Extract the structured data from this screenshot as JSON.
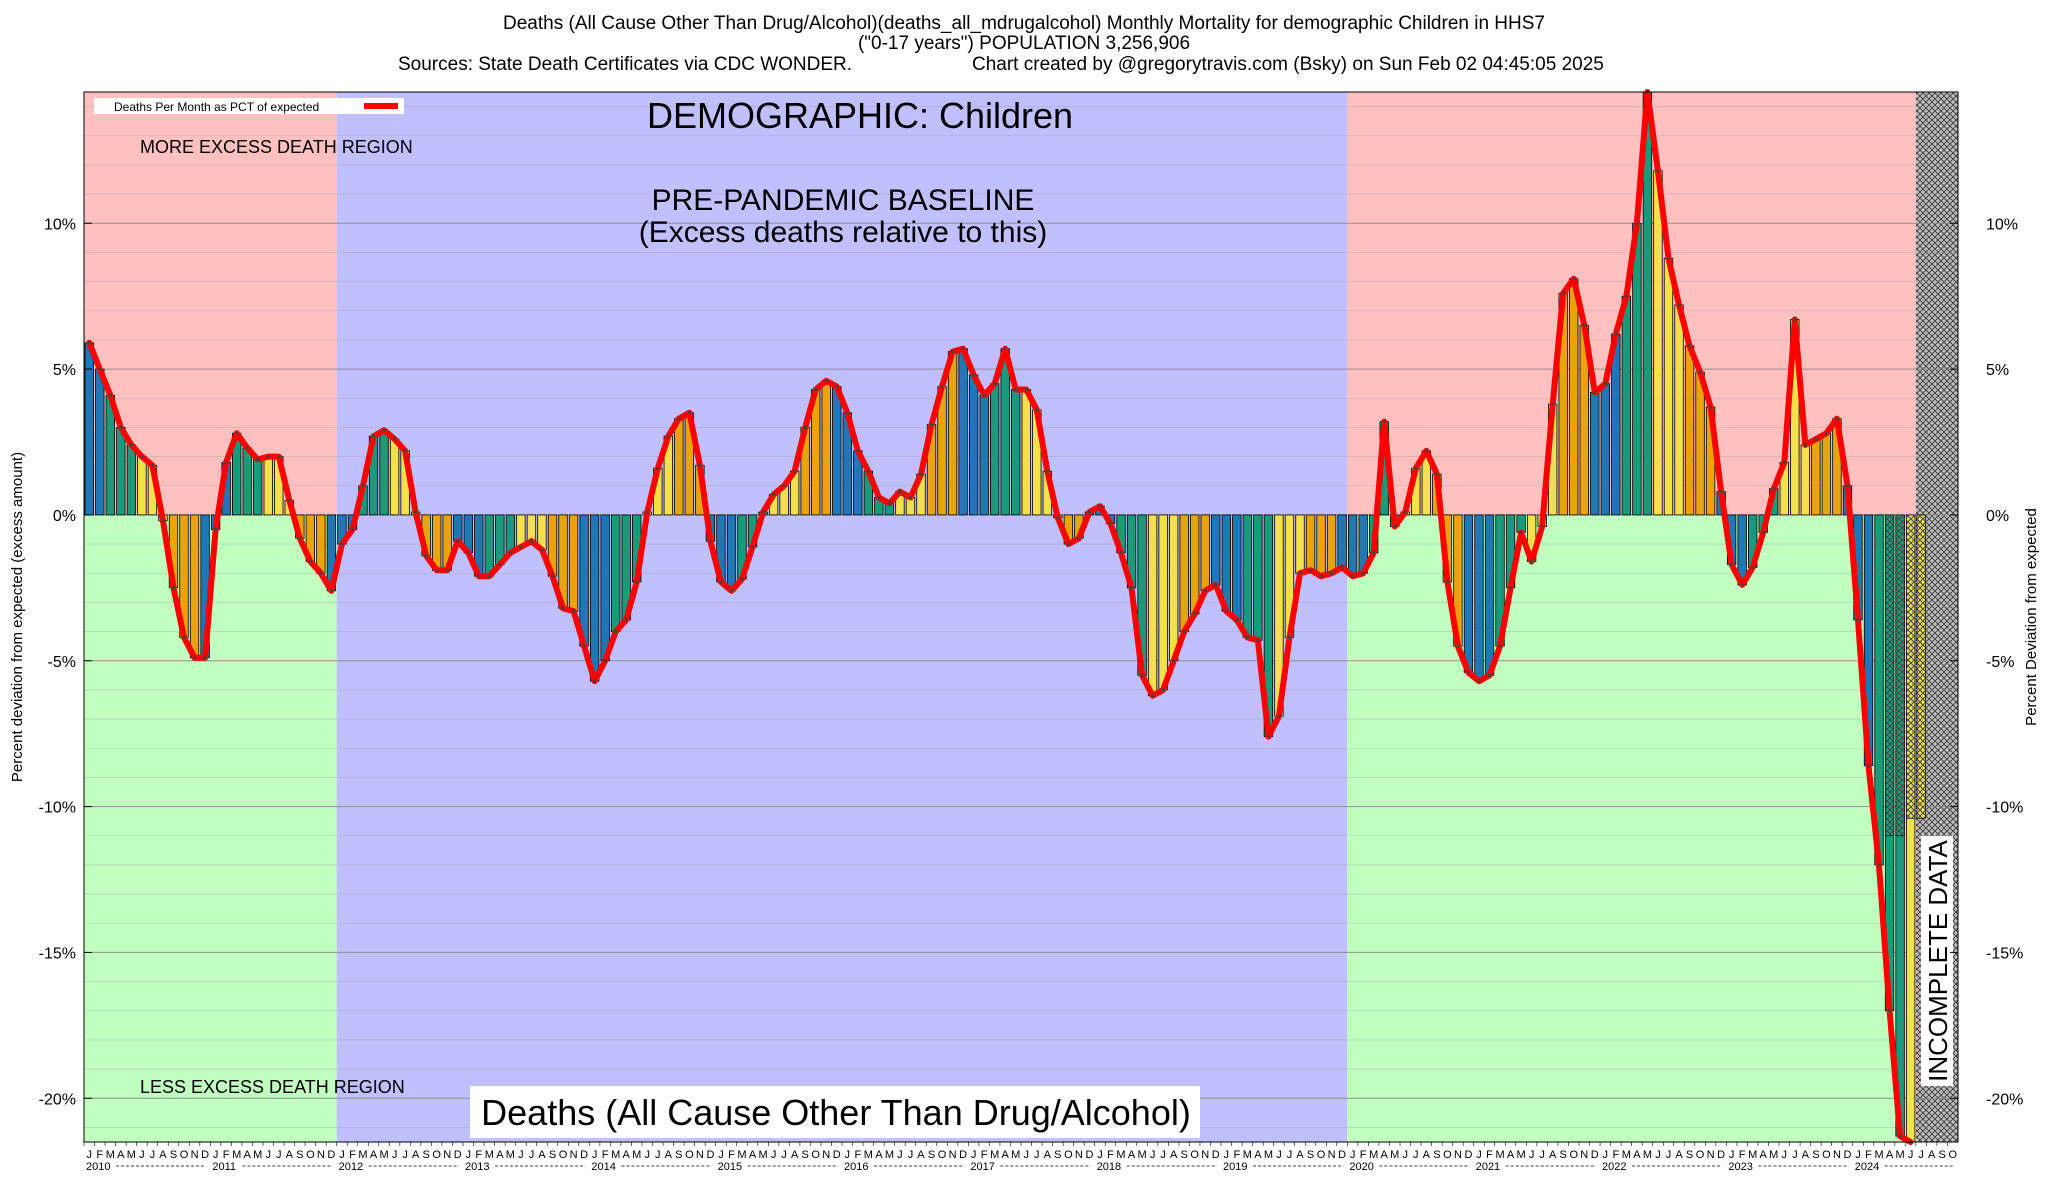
{
  "header": {
    "line1": "Deaths (All Cause Other Than Drug/Alcohol)(deaths_all_mdrugalcohol) Monthly Mortality for demographic Children in HHS7",
    "line2": "(\"0-17 years\") POPULATION 3,256,906",
    "line3_left": "Sources: State Death Certificates via CDC WONDER.",
    "line3_right": "Chart created by @gregorytravis.com (Bsky) on Sun Feb 02 04:45:05 2025"
  },
  "chart_data": {
    "type": "bar",
    "ylabel": "Percent deviation from expected (excess amount)",
    "ylabel_right": "Percent Deviation from expected",
    "ylim": [
      -21.5,
      14.5
    ],
    "y_ticks": [
      {
        "v": 10,
        "label": "10%"
      },
      {
        "v": 5,
        "label": "5%"
      },
      {
        "v": 0,
        "label": "0%"
      },
      {
        "v": -5,
        "label": "-5%"
      },
      {
        "v": -10,
        "label": "-10%"
      },
      {
        "v": -15,
        "label": "-15%"
      },
      {
        "v": -20,
        "label": "-20%"
      }
    ],
    "legend": {
      "label": "Deaths Per Month as PCT of expected",
      "position": "top-left"
    },
    "labels": {
      "demographic": "DEMOGRAPHIC: Children",
      "baseline_1": "PRE-PANDEMIC BASELINE",
      "baseline_2": "(Excess deaths relative to this)",
      "more_region": "MORE EXCESS DEATH REGION",
      "less_region": "LESS EXCESS DEATH REGION",
      "cause": "Deaths (All Cause Other Than Drug/Alcohol)",
      "incomplete": "INCOMPLETE DATA"
    },
    "month_letters": [
      "J",
      "F",
      "M",
      "A",
      "M",
      "J",
      "J",
      "A",
      "S",
      "O",
      "N",
      "D"
    ],
    "years": [
      "2010",
      "2011",
      "2012",
      "2013",
      "2014",
      "2015",
      "2016",
      "2017",
      "2018",
      "2019",
      "2020",
      "2021",
      "2022",
      "2023",
      "2024"
    ],
    "last_month_shown": "O 2024",
    "regions": [
      {
        "from": "2010-01",
        "to": "2011-12",
        "kind": "excess/deficit",
        "upper_color": "#ffc0c0",
        "lower_color": "#c0ffc0"
      },
      {
        "from": "2012-01",
        "to": "2019-12",
        "kind": "pre-pandemic baseline",
        "color": "#c0c0ff"
      },
      {
        "from": "2020-01",
        "to": "2024-06",
        "kind": "excess/deficit",
        "upper_color": "#ffc0c0",
        "lower_color": "#c0ffc0"
      },
      {
        "from": "2024-07",
        "to": "2024-10",
        "kind": "incomplete data",
        "color": "crosshatch"
      }
    ],
    "season_colors": [
      "#1f77b4",
      "#1a9a7a",
      "#f4e04d",
      "#e8a30e"
    ],
    "line_color": "#ff0000",
    "values": [
      5.9,
      5.0,
      4.1,
      3.0,
      2.4,
      2.0,
      1.7,
      -0.2,
      -2.5,
      -4.2,
      -4.9,
      -4.9,
      -0.5,
      1.8,
      2.8,
      2.3,
      1.9,
      2.0,
      2.0,
      0.5,
      -0.8,
      -1.6,
      -2.0,
      -2.6,
      -1.0,
      -0.5,
      1.0,
      2.7,
      2.9,
      2.6,
      2.2,
      0.1,
      -1.4,
      -1.9,
      -1.9,
      -0.9,
      -1.3,
      -2.1,
      -2.1,
      -1.7,
      -1.3,
      -1.1,
      -0.9,
      -1.2,
      -2.1,
      -3.2,
      -3.3,
      -4.5,
      -5.7,
      -5.0,
      -4.0,
      -3.6,
      -2.3,
      0.1,
      1.6,
      2.7,
      3.3,
      3.5,
      1.7,
      -0.9,
      -2.3,
      -2.6,
      -2.2,
      -1.1,
      0.1,
      0.7,
      1.0,
      1.5,
      3.0,
      4.3,
      4.6,
      4.4,
      3.5,
      2.2,
      1.5,
      0.6,
      0.4,
      0.8,
      0.6,
      1.4,
      3.1,
      4.4,
      5.6,
      5.7,
      4.8,
      4.1,
      4.5,
      5.7,
      4.3,
      4.3,
      3.6,
      1.5,
      -0.1,
      -1.0,
      -0.8,
      0.1,
      0.3,
      -0.3,
      -1.3,
      -2.5,
      -5.5,
      -6.2,
      -6.0,
      -5.0,
      -4.0,
      -3.4,
      -2.6,
      -2.4,
      -3.3,
      -3.6,
      -4.2,
      -4.3,
      -7.6,
      -6.9,
      -4.2,
      -2.0,
      -1.9,
      -2.1,
      -2.0,
      -1.8,
      -2.1,
      -2.0,
      -1.3,
      3.2,
      -0.4,
      0.1,
      1.6,
      2.2,
      1.4,
      -2.3,
      -4.5,
      -5.4,
      -5.7,
      -5.5,
      -4.5,
      -2.5,
      -0.6,
      -1.6,
      -0.4,
      3.8,
      7.6,
      8.1,
      6.5,
      4.2,
      4.5,
      6.2,
      7.5,
      10.0,
      14.5,
      11.8,
      8.8,
      7.2,
      5.8,
      4.9,
      3.7,
      0.8,
      -1.7,
      -2.4,
      -1.8,
      -0.6,
      0.9,
      1.8,
      6.7,
      2.4,
      2.6,
      2.8,
      3.3,
      1.0,
      -3.6,
      -8.6,
      -12.0,
      -17.0,
      -21.3,
      -21.5
    ],
    "incomplete_values": [
      -11.0,
      -11.0,
      -10.4,
      -10.4
    ]
  }
}
